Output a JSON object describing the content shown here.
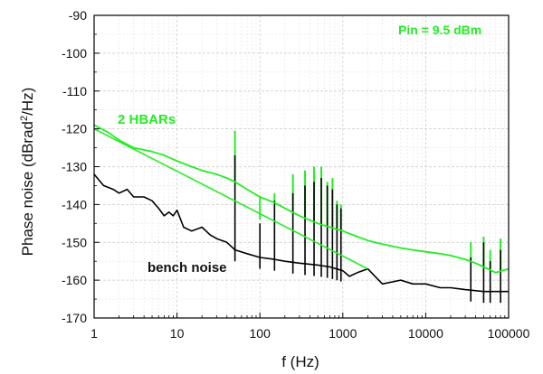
{
  "chart_data": {
    "type": "line",
    "title": "",
    "xlabel": "f (Hz)",
    "ylabel_main": "Phase noise (dBrad",
    "ylabel_sup": "2",
    "ylabel_end": "/Hz)",
    "xscale": "log",
    "xlim": [
      1,
      100000
    ],
    "ylim": [
      -170,
      -90
    ],
    "x_ticks": [
      1,
      10,
      100,
      1000,
      10000,
      100000
    ],
    "x_tick_labels": [
      "1",
      "10",
      "100",
      "1000",
      "10000",
      "100000"
    ],
    "y_ticks": [
      -170,
      -160,
      -150,
      -140,
      -130,
      -120,
      -110,
      -100,
      -90
    ],
    "y_tick_labels": [
      "-170",
      "-160",
      "-150",
      "-140",
      "-130",
      "-120",
      "-110",
      "-100",
      "-90"
    ],
    "grid": true,
    "annotations": {
      "pin": "Pin = 9.5 dBm",
      "hbars": "2 HBARs",
      "bench": "bench noise"
    },
    "colors": {
      "hbars": "#22ee22",
      "bench": "#000000",
      "fit": "#22ee22"
    },
    "series": [
      {
        "color": "#22ee22",
        "x": [
          1,
          1.5,
          2,
          3,
          5,
          7,
          10,
          15,
          20,
          30,
          40,
          50,
          70,
          100,
          150,
          200,
          300,
          500,
          700,
          1000,
          1500,
          2000,
          3000,
          5000,
          7000,
          10000,
          15000,
          20000,
          30000,
          40000,
          50000,
          70000,
          100000
        ],
        "y": [
          -119,
          -121,
          -123,
          -125,
          -126,
          -127,
          -128.5,
          -130,
          -131,
          -132,
          -133,
          -134,
          -136,
          -138,
          -139.5,
          -141,
          -143,
          -145,
          -146,
          -147,
          -148.5,
          -149.5,
          -150.5,
          -151.5,
          -152,
          -152.5,
          -153,
          -153.5,
          -154.5,
          -155.5,
          -156.5,
          -158,
          -157
        ]
      },
      {
        "color": "#000000",
        "x": [
          1,
          1.3,
          1.7,
          2,
          2.5,
          3,
          4,
          5,
          6,
          7,
          8,
          9,
          10,
          12,
          15,
          20,
          25,
          30,
          40,
          50,
          70,
          100,
          150,
          200,
          300,
          500,
          700,
          1000,
          1200,
          1500,
          2000,
          3000,
          5000,
          7000,
          10000,
          15000,
          20000,
          30000,
          50000,
          70000,
          100000
        ],
        "y": [
          -132,
          -135,
          -136,
          -137,
          -136,
          -138,
          -138,
          -139,
          -141,
          -143,
          -142,
          -143,
          -141.5,
          -146,
          -147,
          -146,
          -148,
          -149,
          -150,
          -152,
          -153,
          -154,
          -154.5,
          -155,
          -155.5,
          -156,
          -156.5,
          -157.5,
          -159,
          -158,
          -157,
          -161,
          -160,
          -161,
          -161,
          -162,
          -162,
          -162.5,
          -163,
          -163,
          -163
        ]
      },
      {
        "color": "#22ee22",
        "x": [
          1,
          2000
        ],
        "y": [
          -120,
          -157
        ]
      }
    ],
    "spikes": [
      {
        "x": 50,
        "green_top": -120.5,
        "black_top": -127
      },
      {
        "x": 100,
        "green_top": -144,
        "black_top": -145
      },
      {
        "x": 150,
        "green_top": -137,
        "black_top": -139
      },
      {
        "x": 250,
        "green_top": -132,
        "black_top": -137
      },
      {
        "x": 350,
        "green_top": -131,
        "black_top": -135
      },
      {
        "x": 450,
        "green_top": -130,
        "black_top": -134
      },
      {
        "x": 550,
        "green_top": -130,
        "black_top": -133
      },
      {
        "x": 650,
        "green_top": -134,
        "black_top": -135
      },
      {
        "x": 750,
        "green_top": -133,
        "black_top": -136
      },
      {
        "x": 850,
        "green_top": -139,
        "black_top": -140
      },
      {
        "x": 950,
        "green_top": -140,
        "black_top": -141
      },
      {
        "x": 35000,
        "green_top": -150,
        "black_top": -154
      },
      {
        "x": 50000,
        "green_top": -148.5,
        "black_top": -150
      },
      {
        "x": 60000,
        "green_top": -152,
        "black_top": -155
      },
      {
        "x": 80000,
        "green_top": -149,
        "black_top": -152
      }
    ]
  }
}
